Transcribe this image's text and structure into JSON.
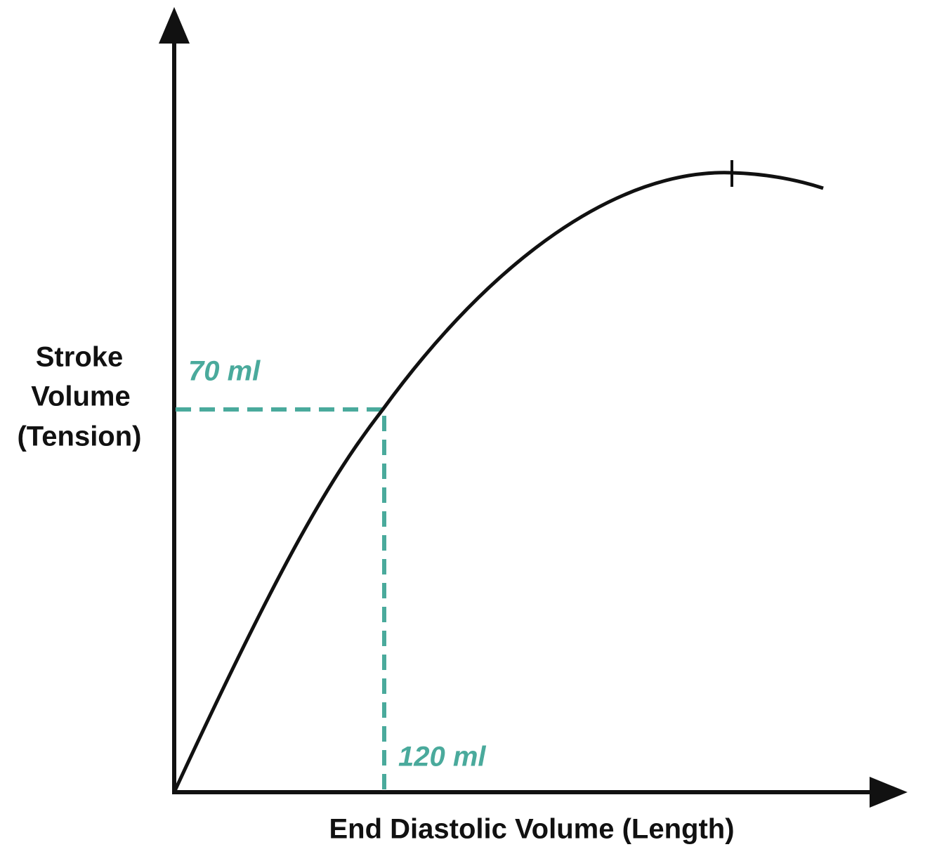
{
  "y_axis": {
    "label_lines": [
      "Stroke",
      "Volume",
      "(Tension)"
    ]
  },
  "x_axis": {
    "label": "End Diastolic Volume (Length)"
  },
  "annotations": {
    "y_marker": "70 ml",
    "x_marker": "120 ml"
  }
}
